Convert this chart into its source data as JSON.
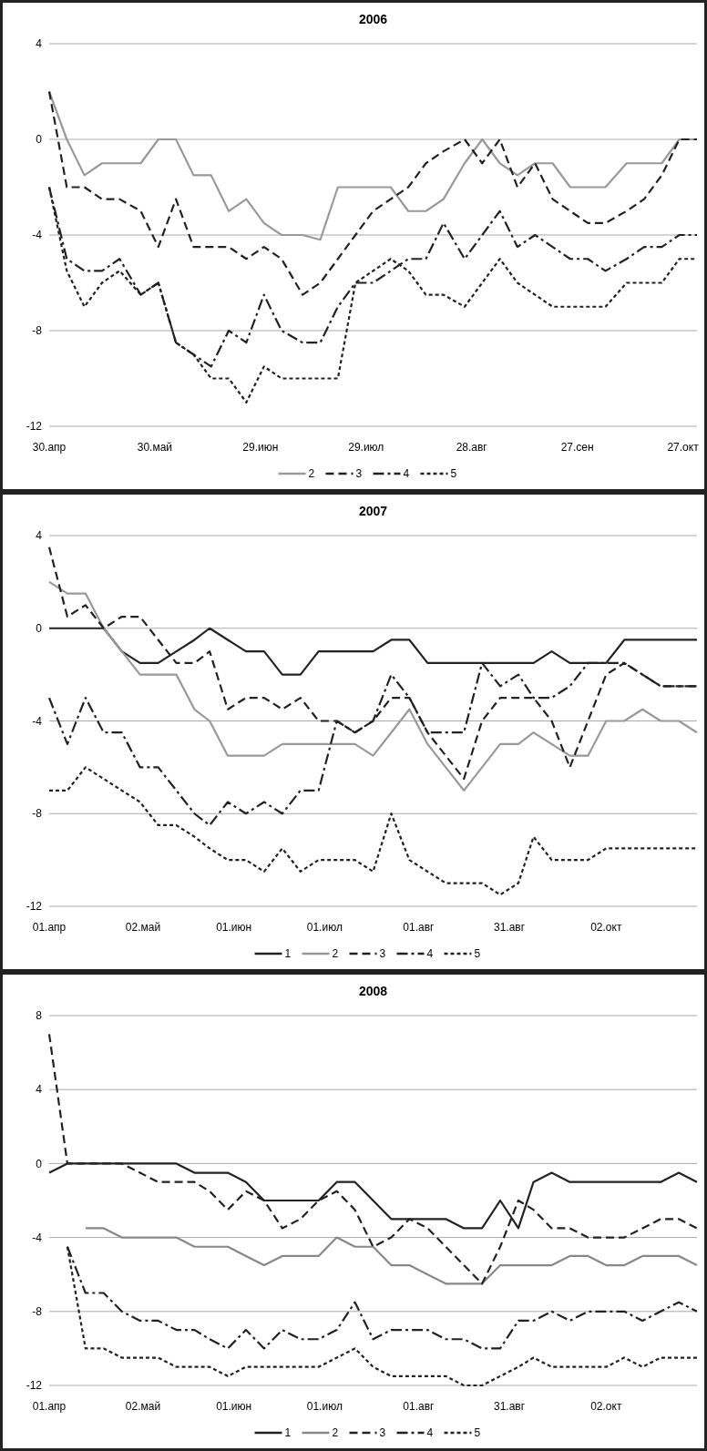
{
  "chart_data": [
    {
      "type": "line",
      "title": "2006",
      "grid": "y",
      "legend": "bottom",
      "x": [
        "2006-04-30",
        "2006-05-05",
        "2006-05-10",
        "2006-05-15",
        "2006-05-20",
        "2006-05-26",
        "2006-05-31",
        "2006-06-05",
        "2006-06-10",
        "2006-06-15",
        "2006-06-20",
        "2006-06-25",
        "2006-06-30",
        "2006-07-05",
        "2006-07-11",
        "2006-07-16",
        "2006-07-21",
        "2006-07-26",
        "2006-07-31",
        "2006-08-05",
        "2006-08-10",
        "2006-08-15",
        "2006-08-20",
        "2006-08-26",
        "2006-08-31",
        "2006-09-05",
        "2006-09-10",
        "2006-09-15",
        "2006-09-20",
        "2006-09-25",
        "2006-09-30",
        "2006-10-05",
        "2006-10-11",
        "2006-10-16",
        "2006-10-21",
        "2006-10-26",
        "2006-10-31"
      ],
      "xlim": [
        "2006-04-30",
        "2006-10-31"
      ],
      "xticks": [
        {
          "value": "2006-04-30",
          "label": "30.апр"
        },
        {
          "value": "2006-05-30",
          "label": "30.май"
        },
        {
          "value": "2006-06-29",
          "label": "29.июн"
        },
        {
          "value": "2006-07-29",
          "label": "29.июл"
        },
        {
          "value": "2006-08-28",
          "label": "28.авг"
        },
        {
          "value": "2006-09-27",
          "label": "27.сен"
        },
        {
          "value": "2006-10-27",
          "label": "27.окт"
        }
      ],
      "ylim": [
        -12,
        4
      ],
      "yticks": [
        -12,
        -8,
        -4,
        0,
        4
      ],
      "series": [
        {
          "name": "2",
          "color": "#999999",
          "line_style": "solid",
          "values": [
            2,
            0,
            -1.5,
            -1,
            -1,
            -1,
            0,
            0,
            -1.5,
            -1.5,
            -3,
            -2.5,
            -3.5,
            -4,
            -4,
            -4.2,
            -2,
            -2,
            -2,
            -2,
            -3,
            -3,
            -2.5,
            -1,
            0,
            -1,
            -1.5,
            -1,
            -1,
            -2,
            -2,
            -2,
            -1,
            -1,
            -1,
            0,
            0
          ]
        },
        {
          "name": "3",
          "color": "#222222",
          "line_style": "dashed",
          "values": [
            2,
            -2,
            -2,
            -2.5,
            -2.5,
            -3,
            -4.5,
            -2.5,
            -4.5,
            -4.5,
            -4.5,
            -5,
            -4.5,
            -5,
            -6.5,
            -6,
            -5,
            -4,
            -3,
            -2.5,
            -2,
            -1,
            -0.5,
            0,
            -1,
            0,
            -2,
            -1,
            -2.5,
            -3,
            -3.5,
            -3.5,
            -3,
            -2.5,
            -1.5,
            0,
            0
          ]
        },
        {
          "name": "4",
          "color": "#222222",
          "line_style": "dashdot",
          "values": [
            -2,
            -5,
            -5.5,
            -5.5,
            -5,
            -6.5,
            -6,
            -8.5,
            -9,
            -9.5,
            -8,
            -8.5,
            -6.5,
            -8,
            -8.5,
            -8.5,
            -7,
            -6,
            -6,
            -5.5,
            -5,
            -5,
            -3.5,
            -5,
            -4,
            -3,
            -4.5,
            -4,
            -4.5,
            -5,
            -5,
            -5.5,
            -5,
            -4.5,
            -4.5,
            -4,
            -4
          ]
        },
        {
          "name": "5",
          "color": "#222222",
          "line_style": "dotted",
          "values": [
            -2,
            -5.5,
            -7,
            -6,
            -5.5,
            -6.5,
            -6,
            -8.5,
            -9,
            -10,
            -10,
            -11,
            -9.5,
            -10,
            -10,
            -10,
            -10,
            -6,
            -5.5,
            -5,
            -5.5,
            -6.5,
            -6.5,
            -7,
            -6,
            -5,
            -6,
            -6.5,
            -7,
            -7,
            -7,
            -7,
            -6,
            -6,
            -6,
            -5,
            -5
          ]
        }
      ]
    },
    {
      "type": "line",
      "title": "2007",
      "grid": "y",
      "legend": "bottom",
      "x": [
        "2007-04-01",
        "2007-04-07",
        "2007-04-13",
        "2007-04-19",
        "2007-04-25",
        "2007-05-01",
        "2007-05-07",
        "2007-05-13",
        "2007-05-19",
        "2007-05-24",
        "2007-05-30",
        "2007-06-05",
        "2007-06-11",
        "2007-06-17",
        "2007-06-23",
        "2007-06-29",
        "2007-07-05",
        "2007-07-11",
        "2007-07-17",
        "2007-07-23",
        "2007-07-29",
        "2007-08-04",
        "2007-08-10",
        "2007-08-16",
        "2007-08-22",
        "2007-08-28",
        "2007-09-03",
        "2007-09-08",
        "2007-09-14",
        "2007-09-20",
        "2007-09-26",
        "2007-10-02",
        "2007-10-08",
        "2007-10-14",
        "2007-10-20",
        "2007-10-26",
        "2007-11-01"
      ],
      "xlim": [
        "2007-04-01",
        "2007-11-01"
      ],
      "xticks": [
        {
          "value": "2007-04-01",
          "label": "01.апр"
        },
        {
          "value": "2007-05-02",
          "label": "02.май"
        },
        {
          "value": "2007-06-01",
          "label": "01.июн"
        },
        {
          "value": "2007-07-01",
          "label": "01.июл"
        },
        {
          "value": "2007-08-01",
          "label": "01.авг"
        },
        {
          "value": "2007-08-31",
          "label": "31.авг"
        },
        {
          "value": "2007-10-02",
          "label": "02.окт"
        }
      ],
      "ylim": [
        -12,
        4
      ],
      "yticks": [
        -12,
        -8,
        -4,
        0,
        4
      ],
      "series": [
        {
          "name": "1",
          "color": "#222222",
          "line_style": "solid",
          "values": [
            0,
            0,
            0,
            0,
            -1,
            -1.5,
            -1.5,
            -1,
            -0.5,
            0,
            -0.5,
            -1,
            -1,
            -2,
            -2,
            -1,
            -1,
            -1,
            -1,
            -0.5,
            -0.5,
            -1.5,
            -1.5,
            -1.5,
            -1.5,
            -1.5,
            -1.5,
            -1.5,
            -1,
            -1.5,
            -1.5,
            -1.5,
            -0.5,
            -0.5,
            -0.5,
            -0.5,
            -0.5
          ]
        },
        {
          "name": "2",
          "color": "#999999",
          "line_style": "solid",
          "values": [
            2,
            1.5,
            1.5,
            0,
            -1,
            -2,
            -2,
            -2,
            -3.5,
            -4,
            -5.5,
            -5.5,
            -5.5,
            -5,
            -5,
            -5,
            -5,
            -5,
            -5.5,
            -4.5,
            -3.5,
            -5,
            -6,
            -7,
            -6,
            -5,
            -5,
            -4.5,
            -5,
            -5.5,
            -5.5,
            -4,
            -4,
            -3.5,
            -4,
            -4,
            -4.5
          ]
        },
        {
          "name": "3",
          "color": "#222222",
          "line_style": "dashed",
          "values": [
            3.5,
            0.5,
            1,
            0,
            0.5,
            0.5,
            -0.5,
            -1.5,
            -1.5,
            -1,
            -3.5,
            -3,
            -3,
            -3.5,
            -3,
            -4,
            -4,
            -4.5,
            -4,
            -3,
            -3,
            -4.5,
            -5.5,
            -6.5,
            -4,
            -3,
            -3,
            -3,
            -4,
            -6,
            -4,
            -2,
            -1.5,
            -2,
            -2.5,
            -2.5,
            -2.5
          ]
        },
        {
          "name": "4",
          "color": "#222222",
          "line_style": "dashdot",
          "values": [
            -3,
            -5,
            -3,
            -4.5,
            -4.5,
            -6,
            -6,
            -7,
            -8,
            -8.5,
            -7.5,
            -8,
            -7.5,
            -8,
            -7,
            -7,
            -4,
            -4.5,
            -4,
            -2,
            -3,
            -4.5,
            -4.5,
            -4.5,
            -1.5,
            -2.5,
            -2,
            -3,
            -3,
            -2.5,
            -1.5,
            -1.5,
            -1.5,
            -2,
            -2.5,
            -2.5,
            -2.5
          ]
        },
        {
          "name": "5",
          "color": "#222222",
          "line_style": "dotted",
          "values": [
            -7,
            -7,
            -6,
            -6.5,
            -7,
            -7.5,
            -8.5,
            -8.5,
            -9,
            -9.5,
            -10,
            -10,
            -10.5,
            -9.5,
            -10.5,
            -10,
            -10,
            -10,
            -10.5,
            -8,
            -10,
            -10.5,
            -11,
            -11,
            -11,
            -11.5,
            -11,
            -9,
            -10,
            -10,
            -10,
            -9.5,
            -9.5,
            -9.5,
            -9.5,
            -9.5,
            -9.5
          ]
        }
      ]
    },
    {
      "type": "line",
      "title": "2008",
      "grid": "y",
      "legend": "bottom",
      "x": [
        "2008-04-01",
        "2008-04-07",
        "2008-04-13",
        "2008-04-19",
        "2008-04-25",
        "2008-05-01",
        "2008-05-07",
        "2008-05-13",
        "2008-05-19",
        "2008-05-24",
        "2008-05-30",
        "2008-06-05",
        "2008-06-11",
        "2008-06-17",
        "2008-06-23",
        "2008-06-29",
        "2008-07-05",
        "2008-07-11",
        "2008-07-17",
        "2008-07-23",
        "2008-07-29",
        "2008-08-04",
        "2008-08-10",
        "2008-08-16",
        "2008-08-22",
        "2008-08-28",
        "2008-09-03",
        "2008-09-08",
        "2008-09-14",
        "2008-09-20",
        "2008-09-26",
        "2008-10-02",
        "2008-10-08",
        "2008-10-14",
        "2008-10-20",
        "2008-10-26",
        "2008-11-01"
      ],
      "xlim": [
        "2008-04-01",
        "2008-11-01"
      ],
      "xticks": [
        {
          "value": "2008-04-01",
          "label": "01.апр"
        },
        {
          "value": "2008-05-02",
          "label": "02.май"
        },
        {
          "value": "2008-06-01",
          "label": "01.июн"
        },
        {
          "value": "2008-07-01",
          "label": "01.июл"
        },
        {
          "value": "2008-08-01",
          "label": "01.авг"
        },
        {
          "value": "2008-08-31",
          "label": "31.авг"
        },
        {
          "value": "2008-10-02",
          "label": "02.окт"
        }
      ],
      "ylim": [
        -12,
        8
      ],
      "yticks": [
        -12,
        -8,
        -4,
        0,
        4,
        8
      ],
      "series": [
        {
          "name": "1",
          "color": "#222222",
          "line_style": "solid",
          "values": [
            -0.5,
            0,
            0,
            0,
            0,
            0,
            0,
            0,
            -0.5,
            -0.5,
            -0.5,
            -1,
            -2,
            -2,
            -2,
            -2,
            -1,
            -1,
            -2,
            -3,
            -3,
            -3,
            -3,
            -3.5,
            -3.5,
            -2,
            -3.5,
            -1,
            -0.5,
            -1,
            -1,
            -1,
            -1,
            -1,
            -1,
            -0.5,
            -1
          ]
        },
        {
          "name": "2",
          "color": "#888888",
          "line_style": "solid",
          "values": [
            null,
            null,
            -3.5,
            -3.5,
            -4,
            -4,
            -4,
            -4,
            -4.5,
            -4.5,
            -4.5,
            -5,
            -5.5,
            -5,
            -5,
            -5,
            -4,
            -4.5,
            -4.5,
            -5.5,
            -5.5,
            -6,
            -6.5,
            -6.5,
            -6.5,
            -5.5,
            -5.5,
            -5.5,
            -5.5,
            -5,
            -5,
            -5.5,
            -5.5,
            -5,
            -5,
            -5,
            -5.5
          ]
        },
        {
          "name": "3",
          "color": "#222222",
          "line_style": "dashed",
          "values": [
            7,
            0,
            0,
            0,
            0,
            -0.5,
            -1,
            -1,
            -1,
            -1.5,
            -2.5,
            -1.5,
            -2,
            -3.5,
            -3,
            -2,
            -1.5,
            -2.5,
            -4.5,
            -4,
            -3,
            -3.5,
            -4.5,
            -5.5,
            -6.5,
            -4.5,
            -2,
            -2.5,
            -3.5,
            -3.5,
            -4,
            -4,
            -4,
            -3.5,
            -3,
            -3,
            -3.5
          ]
        },
        {
          "name": "4",
          "color": "#222222",
          "line_style": "dashdot",
          "values": [
            null,
            -4.5,
            -7,
            -7,
            -8,
            -8.5,
            -8.5,
            -9,
            -9,
            -9.5,
            -10,
            -9,
            -10,
            -9,
            -9.5,
            -9.5,
            -9,
            -7.5,
            -9.5,
            -9,
            -9,
            -9,
            -9.5,
            -9.5,
            -10,
            -10,
            -8.5,
            -8.5,
            -8,
            -8.5,
            -8,
            -8,
            -8,
            -8.5,
            -8,
            -7.5,
            -8
          ]
        },
        {
          "name": "5",
          "color": "#222222",
          "line_style": "dotted",
          "values": [
            null,
            -4.5,
            -10,
            -10,
            -10.5,
            -10.5,
            -10.5,
            -11,
            -11,
            -11,
            -11.5,
            -11,
            -11,
            -11,
            -11,
            -11,
            -10.5,
            -10,
            -11,
            -11.5,
            -11.5,
            -11.5,
            -11.5,
            -12,
            -12,
            -11.5,
            -11,
            -10.5,
            -11,
            -11,
            -11,
            -11,
            -10.5,
            -11,
            -10.5,
            -10.5,
            -10.5
          ]
        }
      ]
    }
  ]
}
